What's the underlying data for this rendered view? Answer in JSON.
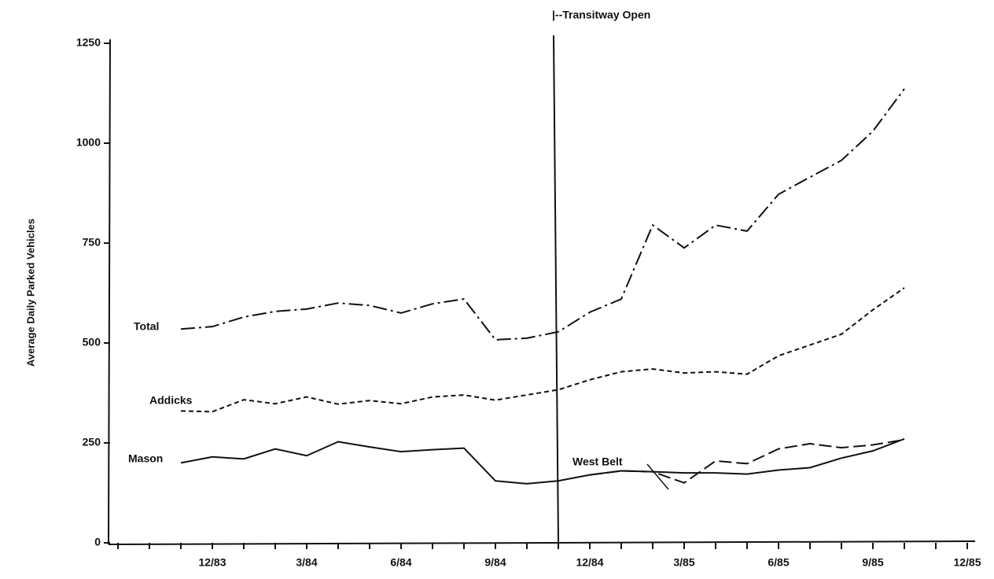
{
  "chart_data": {
    "type": "line",
    "y_label": "Average Daily Parked Vehicles",
    "annotation": "|--Transitway Open",
    "categories": [
      null,
      null,
      null,
      "12/83",
      null,
      null,
      "3/84",
      null,
      null,
      "6/84",
      null,
      null,
      "9/84",
      null,
      null,
      "12/84",
      null,
      null,
      "3/85",
      null,
      null,
      "6/85",
      null,
      null,
      "9/85",
      null,
      null,
      "12/85"
    ],
    "ylim": [
      0,
      1250
    ],
    "yticks": [
      0,
      250,
      500,
      750,
      1000,
      1250
    ],
    "grid": false,
    "series": [
      {
        "name": "Total",
        "color": "#111111",
        "line_style": "dash-dot",
        "values": [
          null,
          null,
          535,
          541,
          565,
          579,
          585,
          600,
          594,
          575,
          598,
          610,
          508,
          512,
          528,
          577,
          610,
          795,
          738,
          795,
          780,
          872,
          915,
          957,
          1030,
          1136,
          null,
          null
        ]
      },
      {
        "name": "Addicks",
        "color": "#111111",
        "line_style": "short-dash",
        "values": [
          null,
          null,
          330,
          328,
          358,
          348,
          365,
          347,
          356,
          348,
          365,
          370,
          357,
          370,
          383,
          408,
          428,
          435,
          425,
          428,
          422,
          468,
          495,
          522,
          583,
          638,
          null,
          null
        ]
      },
      {
        "name": "Mason",
        "color": "#111111",
        "line_style": "solid",
        "values": [
          null,
          null,
          200,
          215,
          210,
          235,
          218,
          253,
          240,
          228,
          233,
          237,
          155,
          148,
          155,
          170,
          180,
          178,
          175,
          175,
          172,
          182,
          188,
          212,
          230,
          260,
          null,
          null
        ]
      },
      {
        "name": "West Belt",
        "color": "#111111",
        "line_style": "long-dash",
        "values": [
          null,
          null,
          null,
          null,
          null,
          null,
          null,
          null,
          null,
          null,
          null,
          null,
          null,
          null,
          null,
          170,
          180,
          178,
          150,
          205,
          198,
          235,
          248,
          238,
          245,
          258,
          null,
          null
        ]
      }
    ]
  }
}
